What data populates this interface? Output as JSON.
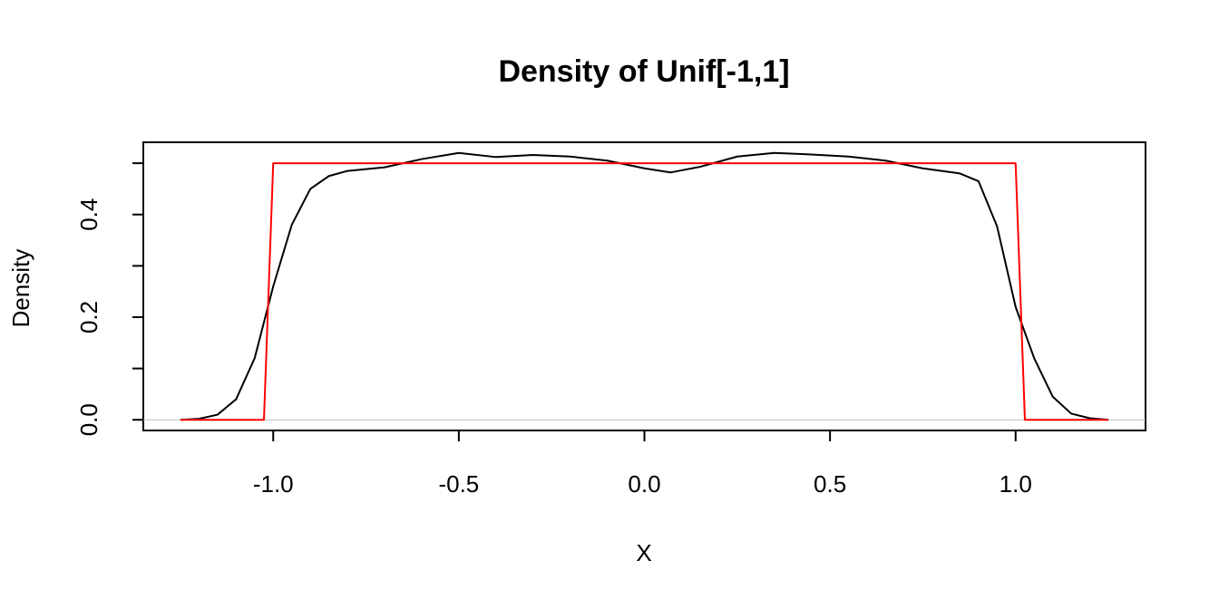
{
  "chart_data": {
    "type": "line",
    "title": "Density of Unif[-1,1]",
    "x_label": "X",
    "y_label": "Density",
    "xlim": [
      -1.35,
      1.35
    ],
    "ylim": [
      -0.0208,
      0.5408
    ],
    "xticks": [
      {
        "value": -1,
        "label": "-1.0"
      },
      {
        "value": -0.5,
        "label": "-0.5"
      },
      {
        "value": 0,
        "label": "0.0"
      },
      {
        "value": 0.5,
        "label": "0.5"
      },
      {
        "value": 1,
        "label": "1.0"
      }
    ],
    "yticks": [
      {
        "value": 0,
        "label": "0.0"
      },
      {
        "value": 0.2,
        "label": "0.2"
      },
      {
        "value": 0.4,
        "label": "0.4"
      }
    ],
    "yminor_ticks": [
      0.1,
      0.3,
      0.5
    ],
    "zero_line": true,
    "zero_line_color": "#bebebe",
    "series": [
      {
        "color": "#000000",
        "x": [
          -1.25,
          -1.2,
          -1.15,
          -1.1,
          -1.05,
          -1.0,
          -0.95,
          -0.9,
          -0.85,
          -0.8,
          -0.7,
          -0.6,
          -0.5,
          -0.4,
          -0.3,
          -0.2,
          -0.1,
          0.0,
          0.07,
          0.15,
          0.25,
          0.35,
          0.45,
          0.55,
          0.65,
          0.75,
          0.85,
          0.9,
          0.95,
          1.0,
          1.05,
          1.1,
          1.15,
          1.2,
          1.25
        ],
        "values": [
          0,
          0.002,
          0.01,
          0.04,
          0.12,
          0.26,
          0.38,
          0.45,
          0.475,
          0.485,
          0.492,
          0.508,
          0.52,
          0.512,
          0.516,
          0.513,
          0.505,
          0.49,
          0.482,
          0.493,
          0.513,
          0.52,
          0.517,
          0.513,
          0.505,
          0.49,
          0.48,
          0.465,
          0.377,
          0.22,
          0.12,
          0.045,
          0.012,
          0.003,
          0
        ]
      },
      {
        "color": "#ff0000",
        "x": [
          -1.25,
          -1.025,
          -1.0,
          1.0,
          1.025,
          1.25
        ],
        "values": [
          0,
          0,
          0.5,
          0.5,
          0,
          0
        ]
      }
    ]
  }
}
